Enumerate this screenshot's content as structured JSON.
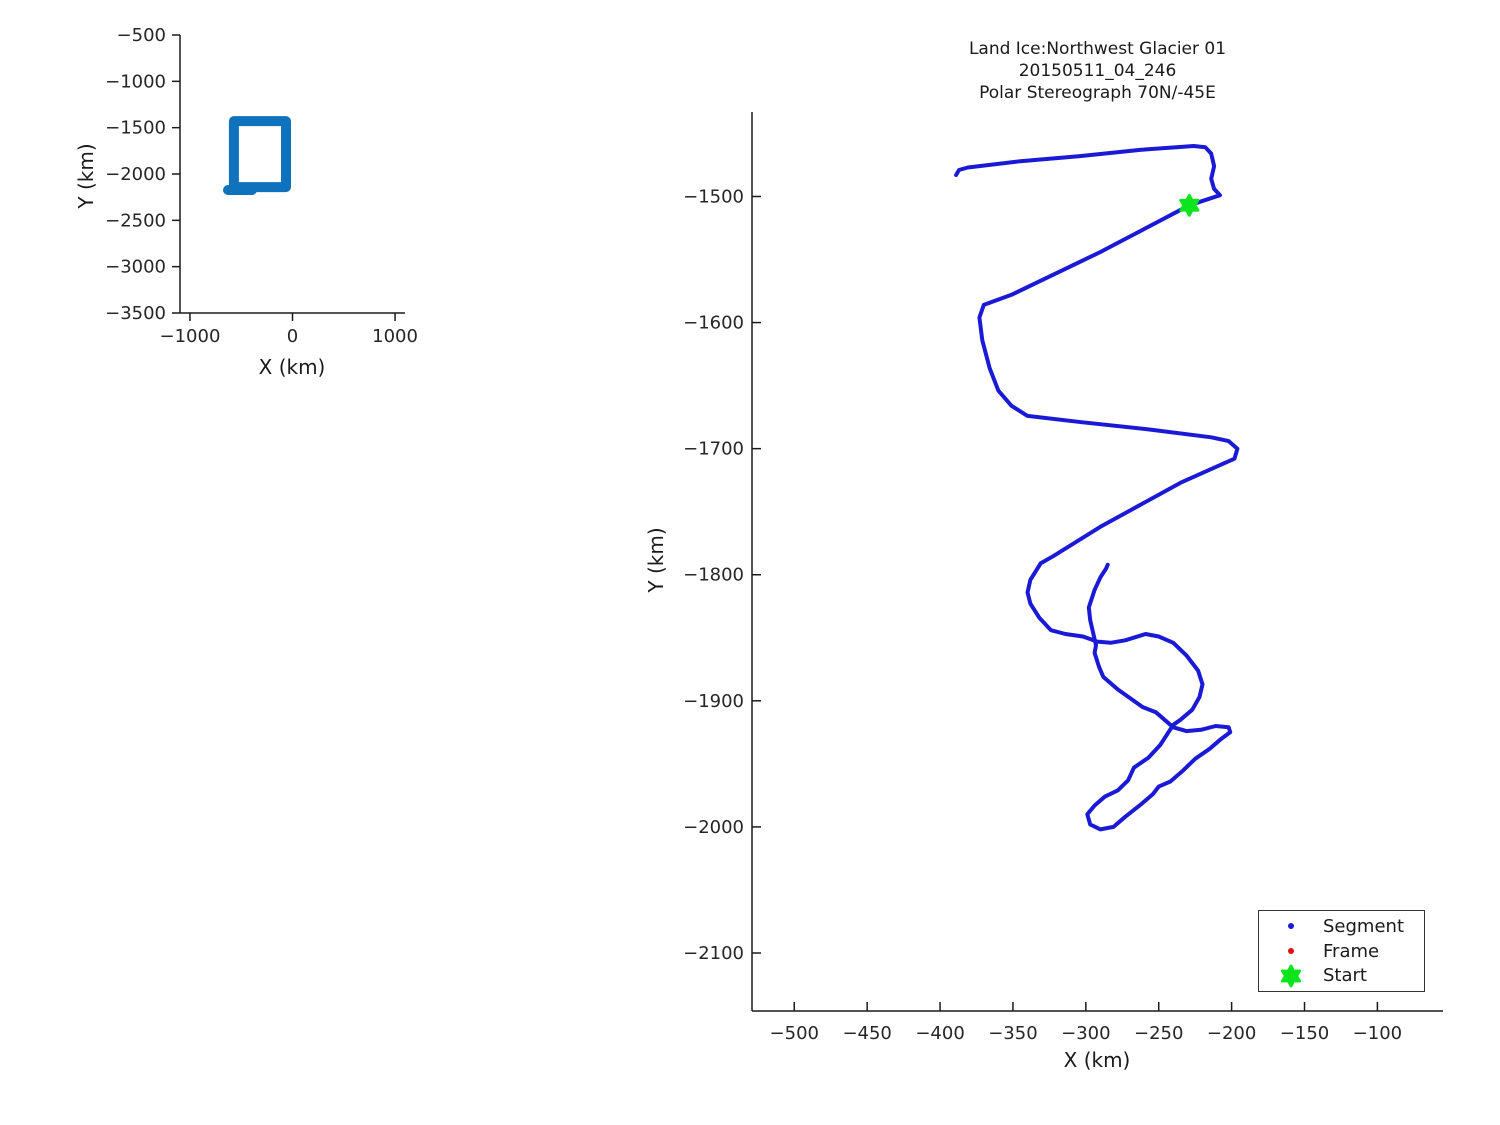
{
  "figure": {
    "background": "#ffffff",
    "spine_color": "#1a1a1a",
    "tick_text_color": "#262626"
  },
  "chart_data": [
    {
      "id": "overview",
      "type": "line",
      "title": "",
      "xlabel": "X (km)",
      "ylabel": "Y (km)",
      "xlim": [
        -1097,
        1097
      ],
      "ylim": [
        -3500,
        -500
      ],
      "xticks": [
        -1000,
        0,
        1000
      ],
      "yticks": [
        -500,
        -1000,
        -1500,
        -2000,
        -2500,
        -3000,
        -3500
      ],
      "grid": false,
      "legend_position": "none",
      "series": [
        {
          "name": "flight-track-overview",
          "color": "#0e72bc",
          "line_width": 10,
          "points": [
            [
              -571,
              -1429
            ],
            [
              -63,
              -1429
            ],
            [
              -63,
              -2141
            ],
            [
              -571,
              -2141
            ],
            [
              -571,
              -1429
            ]
          ]
        },
        {
          "name": "flight-track-overview-base-leg",
          "color": "#0e72bc",
          "line_width": 10,
          "points": [
            [
              -629,
              -2173
            ],
            [
              -395,
              -2173
            ]
          ]
        }
      ]
    },
    {
      "id": "main",
      "type": "line",
      "title": [
        "Land Ice:Northwest Glacier 01",
        "20150511_04_246",
        "Polar Stereograph 70N/-45E"
      ],
      "xlabel": "X (km)",
      "ylabel": "Y (km)",
      "xlim": [
        -529,
        -55
      ],
      "ylim": [
        -2146,
        -1433
      ],
      "xticks": [
        -500,
        -450,
        -400,
        -350,
        -300,
        -250,
        -200,
        -150,
        -100
      ],
      "yticks": [
        -1500,
        -1600,
        -1700,
        -1800,
        -1900,
        -2000,
        -2100
      ],
      "grid": false,
      "legend_position": "bottom-right",
      "legend": {
        "entries": [
          {
            "label": "Segment",
            "marker": "dot",
            "color": "#1a1ad6",
            "size": 6
          },
          {
            "label": "Frame",
            "marker": "dot",
            "color": "#e01010",
            "size": 6
          },
          {
            "label": "Start",
            "marker": "hexagram",
            "color": "#0ce41e",
            "size": 16
          }
        ]
      },
      "series": [
        {
          "name": "segment-track",
          "color": "#1a1ad6",
          "line_width": 4,
          "points": [
            [
              -389,
              -1483
            ],
            [
              -387,
              -1479
            ],
            [
              -381,
              -1477
            ],
            [
              -345,
              -1472
            ],
            [
              -304,
              -1468
            ],
            [
              -262,
              -1463
            ],
            [
              -226,
              -1460
            ],
            [
              -218,
              -1461
            ],
            [
              -214,
              -1466
            ],
            [
              -212,
              -1476
            ],
            [
              -214,
              -1486
            ],
            [
              -212,
              -1494
            ],
            [
              -208,
              -1499
            ],
            [
              -229,
              -1507
            ],
            [
              -290,
              -1544
            ],
            [
              -351,
              -1578
            ],
            [
              -370,
              -1586
            ],
            [
              -373,
              -1596
            ],
            [
              -371,
              -1614
            ],
            [
              -366,
              -1636
            ],
            [
              -360,
              -1654
            ],
            [
              -351,
              -1666
            ],
            [
              -340,
              -1674
            ],
            [
              -303,
              -1679
            ],
            [
              -255,
              -1685
            ],
            [
              -214,
              -1691
            ],
            [
              -202,
              -1694
            ],
            [
              -196,
              -1700
            ],
            [
              -198,
              -1708
            ],
            [
              -206,
              -1712
            ],
            [
              -235,
              -1727
            ],
            [
              -290,
              -1762
            ],
            [
              -322,
              -1785
            ],
            [
              -331,
              -1791
            ],
            [
              -338,
              -1804
            ],
            [
              -340,
              -1814
            ],
            [
              -338,
              -1823
            ],
            [
              -332,
              -1834
            ],
            [
              -324,
              -1844
            ],
            [
              -314,
              -1847
            ],
            [
              -302,
              -1849
            ],
            [
              -292,
              -1853
            ],
            [
              -283,
              -1854
            ],
            [
              -273,
              -1852
            ],
            [
              -259,
              -1847
            ],
            [
              -250,
              -1849
            ],
            [
              -240,
              -1854
            ],
            [
              -231,
              -1864
            ],
            [
              -223,
              -1876
            ],
            [
              -220,
              -1887
            ],
            [
              -222,
              -1897
            ],
            [
              -227,
              -1907
            ],
            [
              -235,
              -1915
            ],
            [
              -240,
              -1919
            ],
            [
              -249,
              -1935
            ],
            [
              -257,
              -1945
            ],
            [
              -267,
              -1953
            ],
            [
              -271,
              -1963
            ],
            [
              -278,
              -1971
            ],
            [
              -287,
              -1976
            ],
            [
              -294,
              -1983
            ],
            [
              -299,
              -1990
            ],
            [
              -297,
              -1998
            ],
            [
              -290,
              -2002
            ],
            [
              -281,
              -2000
            ],
            [
              -273,
              -1992
            ],
            [
              -262,
              -1982
            ],
            [
              -254,
              -1974
            ],
            [
              -250,
              -1968
            ],
            [
              -242,
              -1964
            ],
            [
              -234,
              -1956
            ],
            [
              -225,
              -1946
            ],
            [
              -215,
              -1938
            ],
            [
              -207,
              -1930
            ],
            [
              -201,
              -1925
            ],
            [
              -202,
              -1921
            ],
            [
              -211,
              -1920
            ],
            [
              -221,
              -1923
            ],
            [
              -231,
              -1924
            ],
            [
              -240,
              -1921
            ],
            [
              -252,
              -1909
            ],
            [
              -261,
              -1905
            ],
            [
              -278,
              -1891
            ],
            [
              -288,
              -1881
            ],
            [
              -291,
              -1873
            ],
            [
              -294,
              -1862
            ],
            [
              -293,
              -1856
            ],
            [
              -297,
              -1836
            ],
            [
              -298,
              -1826
            ],
            [
              -294,
              -1812
            ],
            [
              -290,
              -1802
            ],
            [
              -286,
              -1795
            ],
            [
              -285,
              -1792
            ]
          ]
        },
        {
          "name": "frame-points",
          "color": "#e01010",
          "marker": "dot",
          "marker_size": 5,
          "points": [
            [
              -226,
              -1509
            ]
          ]
        },
        {
          "name": "start-point",
          "color": "#0ce41e",
          "marker": "hexagram",
          "marker_size": 16,
          "points": [
            [
              -229,
              -1507
            ]
          ]
        }
      ]
    }
  ]
}
